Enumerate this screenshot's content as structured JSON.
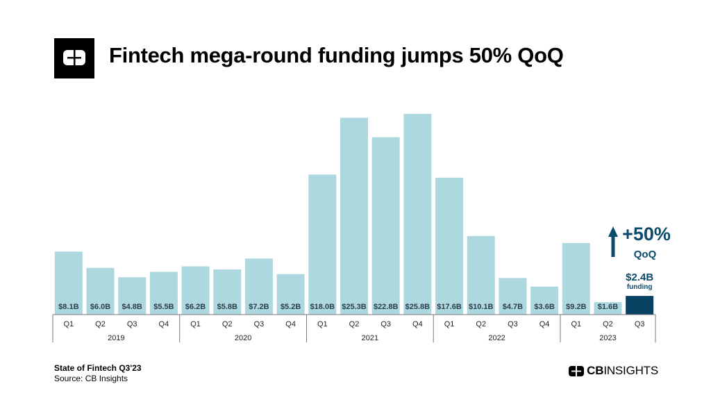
{
  "header": {
    "title": "Fintech mega-round funding jumps 50% QoQ"
  },
  "annotation": {
    "change": "+50%",
    "period": "QoQ",
    "value": "$2.4B",
    "value_caption": "funding",
    "arrow_icon": "up-arrow-icon"
  },
  "footer": {
    "report": "State of Fintech Q3'23",
    "source": "Source: CB Insights",
    "brand_bold": "CB",
    "brand_regular": "INSIGHTS"
  },
  "colors": {
    "bar": "#add8e0",
    "highlight": "#084262",
    "label": "#2b3d4c",
    "accent": "#0a4a6b"
  },
  "chart_data": {
    "type": "bar",
    "title": "Fintech mega-round funding jumps 50% QoQ",
    "xlabel": "",
    "ylabel": "",
    "unit": "$B",
    "ylim": [
      0,
      27
    ],
    "grid": false,
    "legend": "none",
    "quarters": [
      "Q1",
      "Q2",
      "Q3",
      "Q4",
      "Q1",
      "Q2",
      "Q3",
      "Q4",
      "Q1",
      "Q2",
      "Q3",
      "Q4",
      "Q1",
      "Q2",
      "Q3",
      "Q4",
      "Q1",
      "Q2",
      "Q3"
    ],
    "years": [
      {
        "label": "2019",
        "count": 4
      },
      {
        "label": "2020",
        "count": 4
      },
      {
        "label": "2021",
        "count": 4
      },
      {
        "label": "2022",
        "count": 4
      },
      {
        "label": "2023",
        "count": 3
      }
    ],
    "values": [
      8.1,
      6.0,
      4.8,
      5.5,
      6.2,
      5.8,
      7.2,
      5.2,
      18.0,
      25.3,
      22.8,
      25.8,
      17.6,
      10.1,
      4.7,
      3.6,
      9.2,
      1.6,
      2.4
    ],
    "value_labels": [
      "$8.1B",
      "$6.0B",
      "$4.8B",
      "$5.5B",
      "$6.2B",
      "$5.8B",
      "$7.2B",
      "$5.2B",
      "$18.0B",
      "$25.3B",
      "$22.8B",
      "$25.8B",
      "$17.6B",
      "$10.1B",
      "$4.7B",
      "$3.6B",
      "$9.2B",
      "$1.6B",
      ""
    ],
    "highlight_index": 18
  }
}
